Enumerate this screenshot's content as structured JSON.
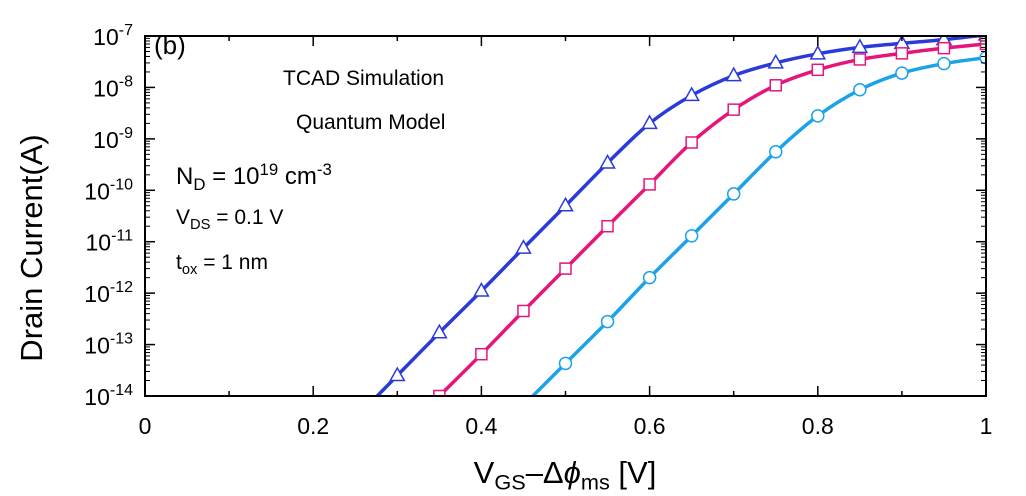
{
  "chart_data": {
    "type": "line",
    "title": "",
    "panel_label": "(b)",
    "xlabel": {
      "main": "V",
      "sub1": "GS",
      "mid": "–Δ",
      "phi": "ϕ",
      "sub2": "ms",
      "unit": " [V]"
    },
    "ylabel": "Drain Current(A)",
    "xlim": [
      0,
      1
    ],
    "ylim": [
      1e-14,
      1e-07
    ],
    "y_scale": "log",
    "grid": false,
    "x_ticks": [
      0,
      0.2,
      0.4,
      0.6,
      0.8,
      1
    ],
    "x_tick_labels": [
      "0",
      "0.2",
      "0.4",
      "0.6",
      "0.8",
      "1"
    ],
    "y_tick_exponents": [
      -14,
      -13,
      -12,
      -11,
      -10,
      -9,
      -8,
      -7
    ],
    "y_tick_base": "10",
    "annotations": {
      "line1": "TCAD Simulation",
      "line2": "Quantum Model",
      "nd": {
        "sym": "N",
        "sub": "D",
        "eq": " = 10",
        "sup": "19",
        "unit": " cm",
        "unit_sup": "-3"
      },
      "vds": {
        "sym": "V",
        "sub": "DS",
        "eq": " = 0.1 V"
      },
      "tox": {
        "sym": "t",
        "sub": "ox",
        "eq": " = 1 nm"
      }
    },
    "series": [
      {
        "marker": "triangle",
        "color": "#2a3bd9",
        "x": [
          0.3,
          0.35,
          0.4,
          0.45,
          0.5,
          0.55,
          0.6,
          0.65,
          0.7,
          0.75,
          0.8,
          0.85,
          0.9,
          0.95,
          1.0
        ],
        "y": [
          2.5e-14,
          1.7e-13,
          1.1e-12,
          7.5e-12,
          5e-11,
          3.4e-10,
          2e-09,
          7e-09,
          1.7e-08,
          3e-08,
          4.5e-08,
          6e-08,
          7.2e-08,
          8.5e-08,
          1.05e-07
        ]
      },
      {
        "marker": "square",
        "color": "#e5157a",
        "x": [
          0.35,
          0.4,
          0.45,
          0.5,
          0.55,
          0.6,
          0.65,
          0.7,
          0.75,
          0.8,
          0.85,
          0.9,
          0.95,
          1.0
        ],
        "y": [
          1e-14,
          6.5e-14,
          4.5e-13,
          3e-12,
          2e-11,
          1.3e-10,
          8.5e-10,
          3.7e-09,
          1.1e-08,
          2.2e-08,
          3.5e-08,
          4.6e-08,
          5.8e-08,
          7e-08
        ]
      },
      {
        "marker": "circle",
        "color": "#1aa3e8",
        "x": [
          0.5,
          0.55,
          0.6,
          0.65,
          0.7,
          0.75,
          0.8,
          0.85,
          0.9,
          0.95,
          1.0
        ],
        "y": [
          4.3e-14,
          2.8e-13,
          2e-12,
          1.3e-11,
          8.5e-11,
          5.6e-10,
          2.8e-09,
          9e-09,
          1.9e-08,
          2.9e-08,
          3.8e-08
        ]
      }
    ]
  }
}
